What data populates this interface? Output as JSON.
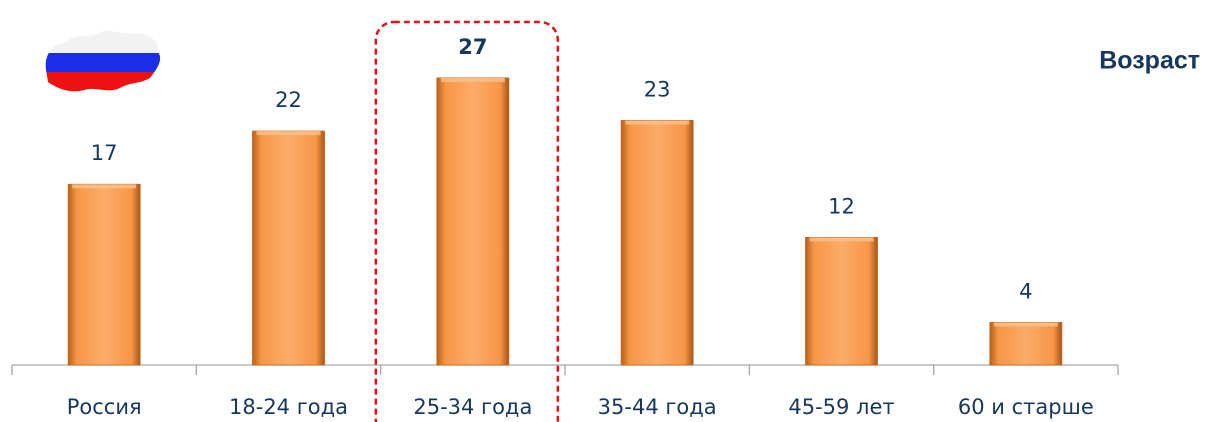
{
  "chart_data": {
    "type": "bar",
    "title": "Возраст",
    "categories": [
      "Россия",
      "18-24 года",
      "25-34 года",
      "35-44 года",
      "45-59 лет",
      "60 и старше"
    ],
    "values": [
      17,
      22,
      27,
      23,
      12,
      4
    ],
    "color": "#f79646",
    "ylim": [
      0,
      30
    ],
    "highlight_index": 2
  }
}
